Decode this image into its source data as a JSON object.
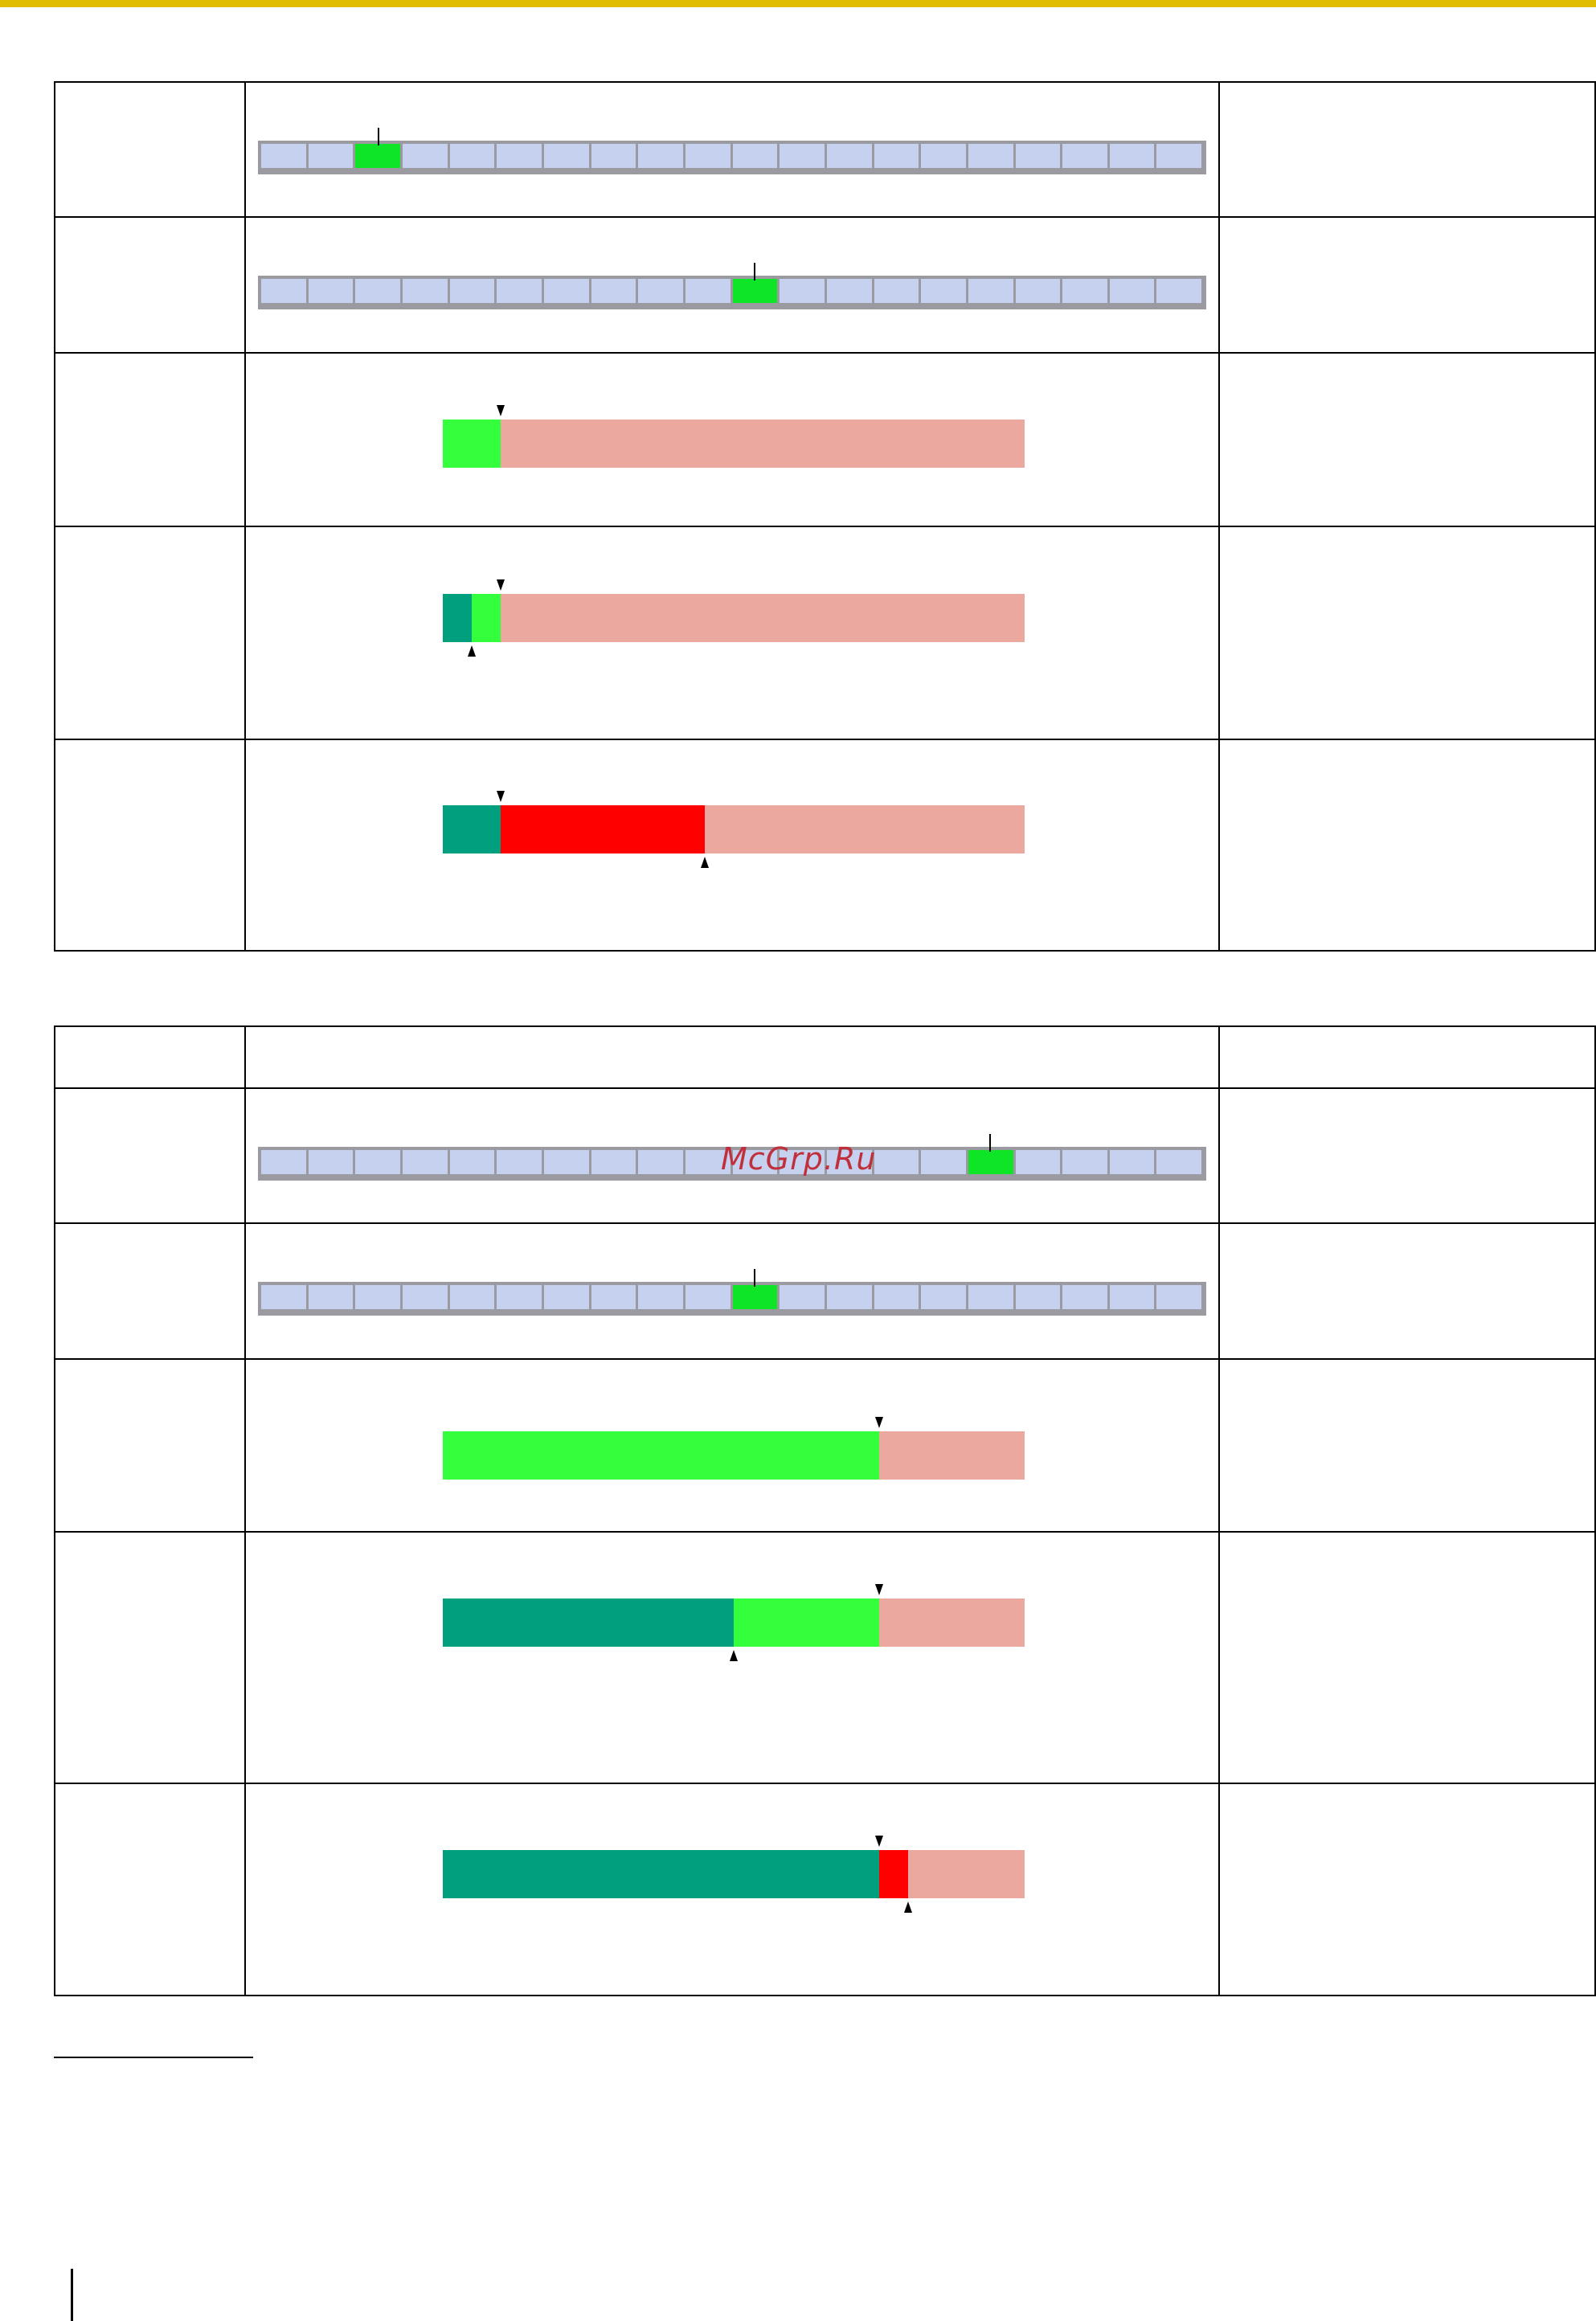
{
  "watermark": "McGrp.Ru",
  "colors": {
    "top_rule": "#e0bd00",
    "segment_off": "#c6d0ef",
    "segment_on": "#0ee526",
    "level_empty": "#eba89f",
    "level_green": "#33ff3c",
    "level_teal": "#00a07e",
    "level_red": "#ff0000"
  },
  "meter_scale": {
    "segments": 20
  },
  "table1": {
    "rows": [
      {
        "kind": "segment",
        "active_segment": 3
      },
      {
        "kind": "segment",
        "active_segment": 11
      },
      {
        "kind": "level",
        "fills": [
          {
            "color": "level_green",
            "from": 0,
            "to": 0.1
          }
        ],
        "marker_top": 0.1
      },
      {
        "kind": "level",
        "fills": [
          {
            "color": "level_teal",
            "from": 0,
            "to": 0.05
          },
          {
            "color": "level_green",
            "from": 0.05,
            "to": 0.1
          }
        ],
        "marker_top": 0.1,
        "marker_bottom": 0.05
      },
      {
        "kind": "level",
        "fills": [
          {
            "color": "level_teal",
            "from": 0,
            "to": 0.1
          },
          {
            "color": "level_red",
            "from": 0.1,
            "to": 0.45
          }
        ],
        "marker_top": 0.1,
        "marker_bottom": 0.45
      }
    ]
  },
  "table2": {
    "rows": [
      {
        "kind": "blank"
      },
      {
        "kind": "segment",
        "active_segment": 16
      },
      {
        "kind": "segment",
        "active_segment": 11
      },
      {
        "kind": "level",
        "fills": [
          {
            "color": "level_green",
            "from": 0,
            "to": 0.75
          }
        ],
        "marker_top": 0.75
      },
      {
        "kind": "level",
        "fills": [
          {
            "color": "level_teal",
            "from": 0,
            "to": 0.5
          },
          {
            "color": "level_green",
            "from": 0.5,
            "to": 0.75
          }
        ],
        "marker_top": 0.75,
        "marker_bottom": 0.5
      },
      {
        "kind": "level",
        "fills": [
          {
            "color": "level_teal",
            "from": 0,
            "to": 0.75
          },
          {
            "color": "level_red",
            "from": 0.75,
            "to": 0.8
          }
        ],
        "marker_top": 0.75,
        "marker_bottom": 0.8
      }
    ]
  }
}
